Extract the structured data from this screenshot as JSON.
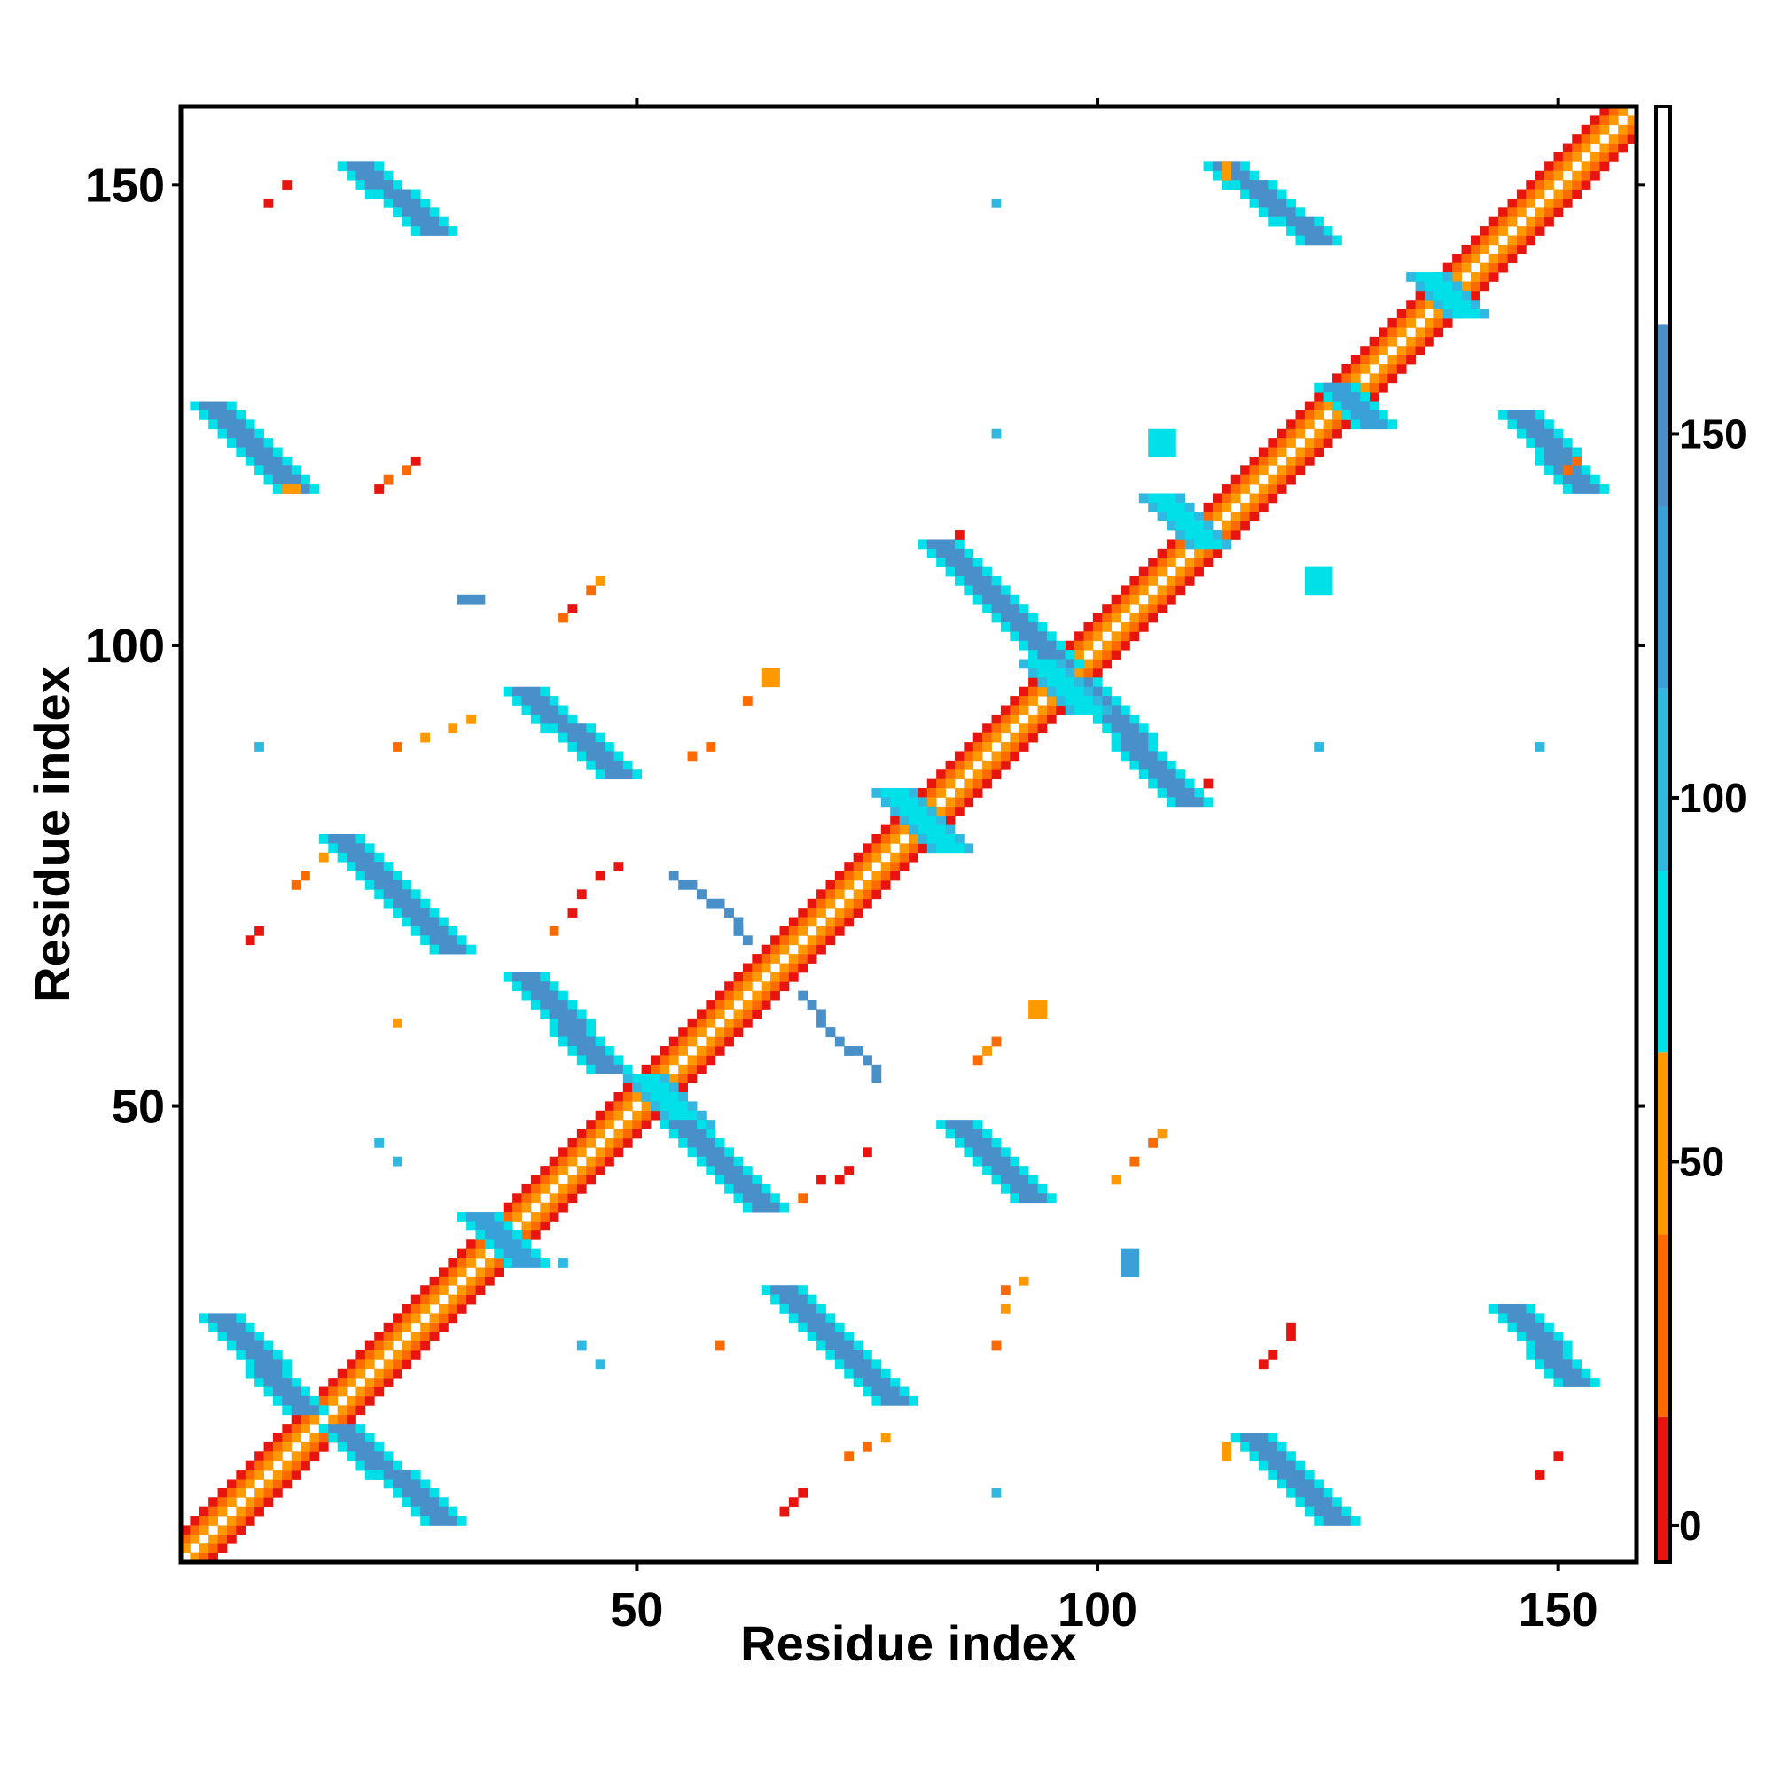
{
  "chart_data": {
    "type": "heatmap",
    "xlabel": "Residue index",
    "ylabel": "Residue index",
    "xlim": [
      1,
      158
    ],
    "ylim": [
      1,
      158
    ],
    "x_ticks": [
      50,
      100,
      150
    ],
    "y_ticks": [
      50,
      100,
      150
    ],
    "colorbar": {
      "ticks": [
        0,
        50,
        100,
        150
      ],
      "range": [
        -5,
        195
      ],
      "bins": [
        {
          "from": -5,
          "to": 15,
          "color": "#e8140f"
        },
        {
          "from": 15,
          "to": 40,
          "color": "#ff6a00"
        },
        {
          "from": 40,
          "to": 65,
          "color": "#ff9900"
        },
        {
          "from": 65,
          "to": 90,
          "color": "#00e0e8"
        },
        {
          "from": 90,
          "to": 115,
          "color": "#30b8e0"
        },
        {
          "from": 115,
          "to": 140,
          "color": "#3aa0d8"
        },
        {
          "from": 140,
          "to": 165,
          "color": "#4a90c8"
        },
        {
          "from": 165,
          "to": 195,
          "color": "#ffffff"
        }
      ]
    },
    "diagonal_band": {
      "from": 1,
      "to": 158
    },
    "bands": [
      {
        "x1": 5,
        "y1": 27,
        "x2": 14,
        "y2": 17,
        "width": 2,
        "color": "#4a90c8",
        "edge": "#00e0e8"
      },
      {
        "x1": 18,
        "y1": 15,
        "x2": 29,
        "y2": 5,
        "width": 2,
        "color": "#4a90c8",
        "edge": "#00e0e8"
      },
      {
        "x1": 33,
        "y1": 38,
        "x2": 38,
        "y2": 33,
        "width": 2,
        "color": "#3aa0d8",
        "edge": "#00e0e8"
      },
      {
        "x1": 51,
        "y1": 53,
        "x2": 56,
        "y2": 48,
        "width": 2,
        "color": "#00e0e8",
        "edge": "#30b8e0"
      },
      {
        "x1": 55,
        "y1": 48,
        "x2": 64,
        "y2": 39,
        "width": 2,
        "color": "#4a90c8",
        "edge": "#00e0e8"
      },
      {
        "x1": 66,
        "y1": 30,
        "x2": 78,
        "y2": 18,
        "width": 2,
        "color": "#4a90c8",
        "edge": "#00e0e8"
      },
      {
        "x1": 38,
        "y1": 64,
        "x2": 47,
        "y2": 54,
        "width": 2,
        "color": "#4a90c8",
        "edge": "#00e0e8"
      },
      {
        "x1": 18,
        "y1": 79,
        "x2": 30,
        "y2": 67,
        "width": 2,
        "color": "#4a90c8",
        "edge": "#00e0e8"
      },
      {
        "x1": 38,
        "y1": 95,
        "x2": 48,
        "y2": 86,
        "width": 2,
        "color": "#4a90c8",
        "edge": "#00e0e8"
      },
      {
        "x1": 85,
        "y1": 48,
        "x2": 93,
        "y2": 40,
        "width": 2,
        "color": "#4a90c8",
        "edge": "#00e0e8"
      },
      {
        "x1": 83,
        "y1": 111,
        "x2": 96,
        "y2": 98,
        "width": 2,
        "color": "#4a90c8",
        "edge": "#00e0e8"
      },
      {
        "x1": 98,
        "y1": 96,
        "x2": 110,
        "y2": 83,
        "width": 2,
        "color": "#4a90c8",
        "edge": "#00e0e8"
      },
      {
        "x1": 4,
        "y1": 126,
        "x2": 13,
        "y2": 117,
        "width": 2,
        "color": "#4a90c8",
        "edge": "#00e0e8"
      },
      {
        "x1": 20,
        "y1": 152,
        "x2": 28,
        "y2": 145,
        "width": 2,
        "color": "#4a90c8",
        "edge": "#00e0e8"
      },
      {
        "x1": 114,
        "y1": 152,
        "x2": 124,
        "y2": 144,
        "width": 2,
        "color": "#4a90c8",
        "edge": "#00e0e8"
      },
      {
        "x1": 146,
        "y1": 125,
        "x2": 153,
        "y2": 117,
        "width": 2,
        "color": "#4a90c8",
        "edge": "#00e0e8"
      },
      {
        "x1": 145,
        "y1": 28,
        "x2": 152,
        "y2": 20,
        "width": 2,
        "color": "#4a90c8",
        "edge": "#00e0e8"
      },
      {
        "x1": 117,
        "y1": 14,
        "x2": 126,
        "y2": 5,
        "width": 2,
        "color": "#4a90c8",
        "edge": "#00e0e8"
      },
      {
        "x1": 78,
        "y1": 84,
        "x2": 84,
        "y2": 78,
        "width": 2,
        "color": "#00e0e8",
        "edge": "#30b8e0"
      },
      {
        "x1": 94,
        "y1": 98,
        "x2": 99,
        "y2": 93,
        "width": 2,
        "color": "#00e0e8",
        "edge": "#30b8e0"
      },
      {
        "x1": 107,
        "y1": 116,
        "x2": 112,
        "y2": 111,
        "width": 2,
        "color": "#00e0e8",
        "edge": "#30b8e0"
      },
      {
        "x1": 126,
        "y1": 128,
        "x2": 130,
        "y2": 124,
        "width": 2,
        "color": "#3aa0d8",
        "edge": "#00e0e8"
      },
      {
        "x1": 136,
        "y1": 140,
        "x2": 140,
        "y2": 136,
        "width": 2,
        "color": "#00e0e8",
        "edge": "#30b8e0"
      }
    ],
    "paths": [
      {
        "points": [
          [
            54,
            75
          ],
          [
            57,
            73
          ],
          [
            60,
            71
          ],
          [
            61,
            69
          ],
          [
            62,
            68
          ]
        ],
        "color": "#4a90c8"
      },
      {
        "points": [
          [
            68,
            62
          ],
          [
            69,
            61
          ],
          [
            71,
            58
          ],
          [
            73,
            56
          ],
          [
            75,
            55
          ],
          [
            76,
            53
          ]
        ],
        "color": "#4a90c8"
      }
    ],
    "blobs": [
      {
        "x": 103,
        "y": 32,
        "w": 2,
        "h": 3,
        "color": "#3aa0d8"
      },
      {
        "x": 106,
        "y": 121,
        "w": 3,
        "h": 3,
        "color": "#00e0e8"
      },
      {
        "x": 123,
        "y": 106,
        "w": 3,
        "h": 3,
        "color": "#00e0e8"
      },
      {
        "x": 31,
        "y": 105,
        "w": 3,
        "h": 1,
        "color": "#4a90c8"
      },
      {
        "x": 64,
        "y": 96,
        "w": 2,
        "h": 2,
        "color": "#ff9900"
      },
      {
        "x": 93,
        "y": 60,
        "w": 2,
        "h": 2,
        "color": "#ff9900"
      },
      {
        "x": 114,
        "y": 12,
        "w": 1,
        "h": 2,
        "color": "#ff9900"
      },
      {
        "x": 114,
        "y": 151,
        "w": 1,
        "h": 2,
        "color": "#ff9900"
      },
      {
        "x": 12,
        "y": 117,
        "w": 2,
        "h": 1,
        "color": "#ff9900"
      }
    ],
    "points": [
      {
        "x": 89,
        "y": 148,
        "color": "#30b8e0"
      },
      {
        "x": 89,
        "y": 123,
        "color": "#30b8e0"
      },
      {
        "x": 9,
        "y": 89,
        "color": "#30b8e0"
      },
      {
        "x": 124,
        "y": 89,
        "color": "#30b8e0"
      },
      {
        "x": 148,
        "y": 89,
        "color": "#30b8e0"
      },
      {
        "x": 89,
        "y": 8,
        "color": "#30b8e0"
      },
      {
        "x": 22,
        "y": 46,
        "color": "#30b8e0"
      },
      {
        "x": 24,
        "y": 44,
        "color": "#30b8e0"
      },
      {
        "x": 42,
        "y": 33,
        "color": "#30b8e0"
      },
      {
        "x": 44,
        "y": 24,
        "color": "#30b8e0"
      },
      {
        "x": 46,
        "y": 22,
        "color": "#30b8e0"
      },
      {
        "x": 12,
        "y": 150,
        "color": "#e8140f"
      },
      {
        "x": 10,
        "y": 148,
        "color": "#e8140f"
      },
      {
        "x": 22,
        "y": 117,
        "color": "#e8140f"
      },
      {
        "x": 23,
        "y": 118,
        "color": "#ff6a00"
      },
      {
        "x": 25,
        "y": 119,
        "color": "#ff6a00"
      },
      {
        "x": 26,
        "y": 120,
        "color": "#e8140f"
      },
      {
        "x": 42,
        "y": 103,
        "color": "#ff6a00"
      },
      {
        "x": 43,
        "y": 104,
        "color": "#e8140f"
      },
      {
        "x": 45,
        "y": 106,
        "color": "#ff6a00"
      },
      {
        "x": 46,
        "y": 107,
        "color": "#ff9900"
      },
      {
        "x": 24,
        "y": 89,
        "color": "#ff6a00"
      },
      {
        "x": 27,
        "y": 90,
        "color": "#ff9900"
      },
      {
        "x": 30,
        "y": 91,
        "color": "#ff9900"
      },
      {
        "x": 32,
        "y": 92,
        "color": "#ff9900"
      },
      {
        "x": 56,
        "y": 88,
        "color": "#ff6a00"
      },
      {
        "x": 58,
        "y": 89,
        "color": "#ff6a00"
      },
      {
        "x": 62,
        "y": 94,
        "color": "#ff6a00"
      },
      {
        "x": 8,
        "y": 68,
        "color": "#e8140f"
      },
      {
        "x": 9,
        "y": 69,
        "color": "#e8140f"
      },
      {
        "x": 13,
        "y": 74,
        "color": "#ff6a00"
      },
      {
        "x": 14,
        "y": 75,
        "color": "#ff6a00"
      },
      {
        "x": 16,
        "y": 77,
        "color": "#ff9900"
      },
      {
        "x": 24,
        "y": 59,
        "color": "#ff9900"
      },
      {
        "x": 41,
        "y": 69,
        "color": "#ff6a00"
      },
      {
        "x": 43,
        "y": 71,
        "color": "#e8140f"
      },
      {
        "x": 44,
        "y": 73,
        "color": "#e8140f"
      },
      {
        "x": 46,
        "y": 75,
        "color": "#e8140f"
      },
      {
        "x": 48,
        "y": 76,
        "color": "#e8140f"
      },
      {
        "x": 88,
        "y": 56,
        "color": "#ff9900"
      },
      {
        "x": 89,
        "y": 57,
        "color": "#ff6a00"
      },
      {
        "x": 87,
        "y": 55,
        "color": "#ff6a00"
      },
      {
        "x": 68,
        "y": 40,
        "color": "#ff6a00"
      },
      {
        "x": 70,
        "y": 42,
        "color": "#e8140f"
      },
      {
        "x": 72,
        "y": 42,
        "color": "#e8140f"
      },
      {
        "x": 73,
        "y": 43,
        "color": "#e8140f"
      },
      {
        "x": 75,
        "y": 45,
        "color": "#e8140f"
      },
      {
        "x": 102,
        "y": 42,
        "color": "#ff9900"
      },
      {
        "x": 104,
        "y": 44,
        "color": "#ff6a00"
      },
      {
        "x": 106,
        "y": 46,
        "color": "#ff6a00"
      },
      {
        "x": 107,
        "y": 47,
        "color": "#ff9900"
      },
      {
        "x": 92,
        "y": 31,
        "color": "#ff9900"
      },
      {
        "x": 90,
        "y": 30,
        "color": "#ff6a00"
      },
      {
        "x": 90,
        "y": 28,
        "color": "#ff9900"
      },
      {
        "x": 89,
        "y": 24,
        "color": "#ff6a00"
      },
      {
        "x": 59,
        "y": 24,
        "color": "#ff6a00"
      },
      {
        "x": 68,
        "y": 8,
        "color": "#e8140f"
      },
      {
        "x": 67,
        "y": 7,
        "color": "#e8140f"
      },
      {
        "x": 66,
        "y": 6,
        "color": "#e8140f"
      },
      {
        "x": 73,
        "y": 12,
        "color": "#ff6a00"
      },
      {
        "x": 75,
        "y": 13,
        "color": "#ff6a00"
      },
      {
        "x": 77,
        "y": 14,
        "color": "#ff9900"
      },
      {
        "x": 118,
        "y": 22,
        "color": "#e8140f"
      },
      {
        "x": 119,
        "y": 23,
        "color": "#e8140f"
      },
      {
        "x": 121,
        "y": 26,
        "color": "#e8140f"
      },
      {
        "x": 121,
        "y": 25,
        "color": "#e8140f"
      },
      {
        "x": 148,
        "y": 10,
        "color": "#e8140f"
      },
      {
        "x": 150,
        "y": 12,
        "color": "#e8140f"
      },
      {
        "x": 85,
        "y": 112,
        "color": "#e8140f"
      },
      {
        "x": 112,
        "y": 85,
        "color": "#e8140f"
      },
      {
        "x": 151,
        "y": 119,
        "color": "#ff6a00"
      },
      {
        "x": 152,
        "y": 120,
        "color": "#ff6a00"
      }
    ]
  }
}
